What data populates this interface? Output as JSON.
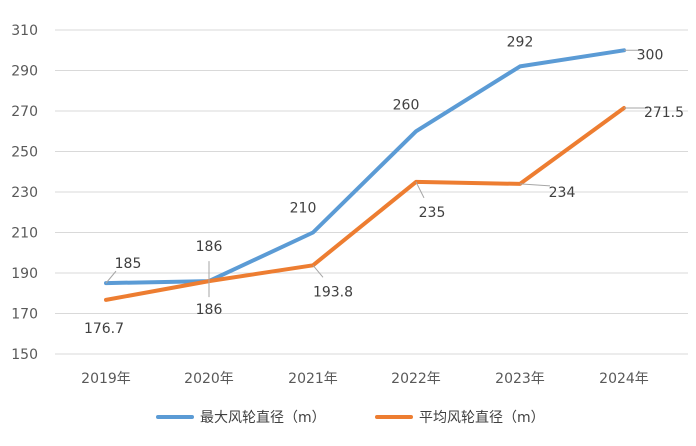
{
  "chart_data": {
    "type": "line",
    "categories": [
      "2019年",
      "2020年",
      "2021年",
      "2022年",
      "2023年",
      "2024年"
    ],
    "series": [
      {
        "name": "最大风轮直径（m）",
        "color": "#5b9bd5",
        "values": [
          185,
          186,
          210,
          260,
          292,
          300
        ],
        "labels": [
          "185",
          "186",
          "210",
          "260",
          "292",
          "300"
        ]
      },
      {
        "name": "平均风轮直径（m）",
        "color": "#ed7d31",
        "values": [
          176.7,
          186,
          193.8,
          235,
          234,
          271.5
        ],
        "labels": [
          "176.7",
          "186",
          "193.8",
          "235",
          "234",
          "271.5"
        ]
      }
    ],
    "yticks": [
      150,
      170,
      190,
      210,
      230,
      250,
      270,
      290,
      310
    ],
    "ylim": [
      150,
      310
    ],
    "grid": true,
    "legend_position": "bottom"
  }
}
